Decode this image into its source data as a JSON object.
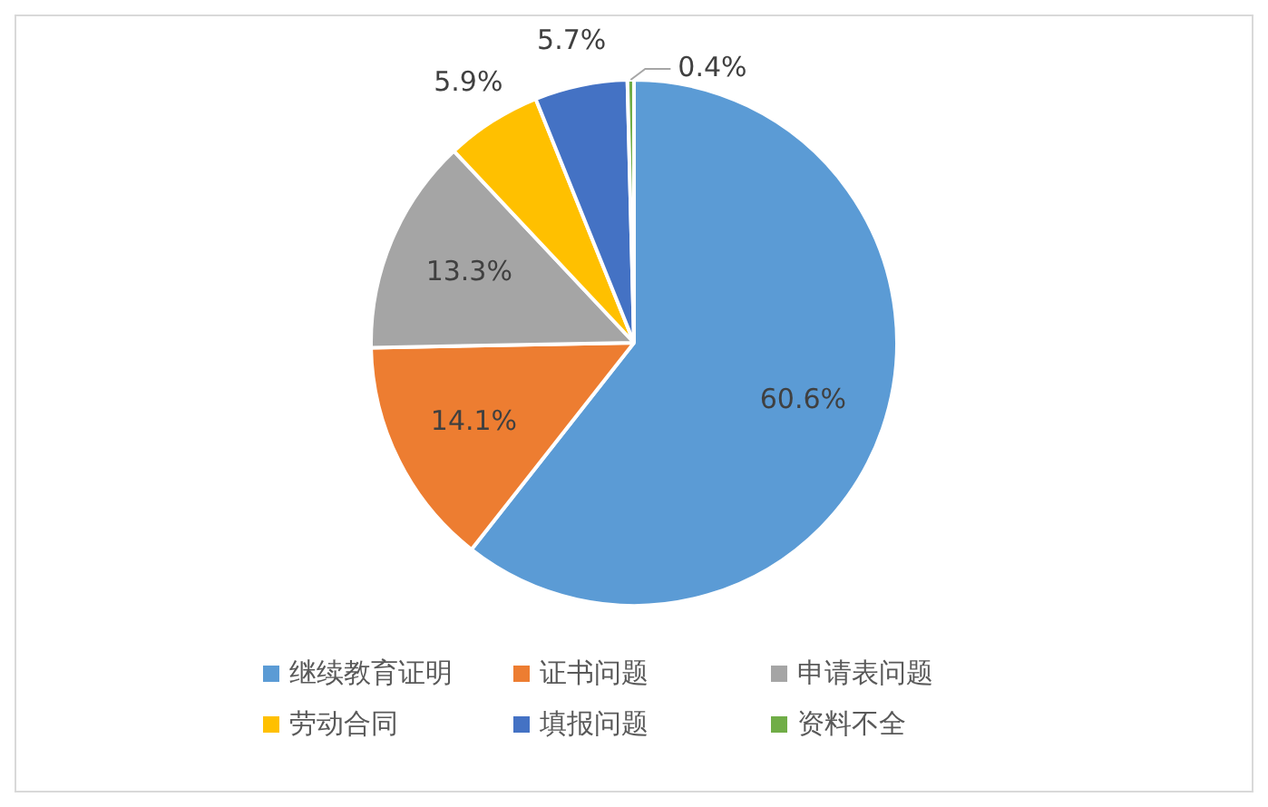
{
  "chart_data": {
    "type": "pie",
    "categories": [
      "继续教育证明",
      "证书问题",
      "申请表问题",
      "劳动合同",
      "填报问题",
      "资料不全"
    ],
    "values": [
      60.6,
      14.1,
      13.3,
      5.9,
      5.7,
      0.4
    ],
    "value_labels": [
      "60.6%",
      "14.1%",
      "13.3%",
      "5.9%",
      "5.7%",
      "0.4%"
    ],
    "colors": [
      "#5b9bd5",
      "#ed7d31",
      "#a5a5a5",
      "#ffc000",
      "#4472c4",
      "#70ad47"
    ],
    "legend": "bottom"
  }
}
